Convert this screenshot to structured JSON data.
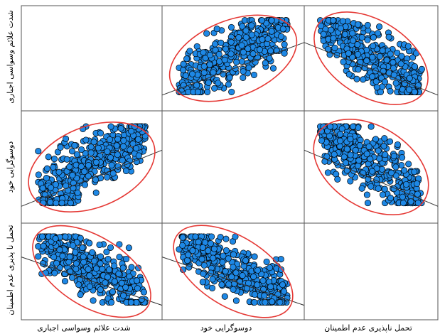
{
  "chart_data": {
    "type": "scatter-matrix",
    "variables": [
      "شدت علائم وسواسی اجباری",
      "دوسوگرایی خود",
      "تحمل نا پذیری عدم اطمینان"
    ],
    "column_labels": [
      "شدت علائم وسواسی اجباری",
      "دوسوگرایی خود",
      "تحمل ناپذیری عدم اطمینان"
    ],
    "row_labels": [
      "شدت علائم وسواسی اجباری",
      "دوسوگرایی خود",
      "تحمل نا پذیری عدم اطمینان"
    ],
    "panels": [
      {
        "row": 0,
        "col": 1,
        "correlation": "positive",
        "density": 0.7,
        "ellipse": true
      },
      {
        "row": 0,
        "col": 2,
        "correlation": "negative",
        "density": 0.6,
        "ellipse": true
      },
      {
        "row": 1,
        "col": 0,
        "correlation": "positive",
        "density": 0.7,
        "ellipse": true
      },
      {
        "row": 1,
        "col": 2,
        "correlation": "negative",
        "density": 0.6,
        "ellipse": true
      },
      {
        "row": 2,
        "col": 0,
        "correlation": "negative",
        "density": 0.7,
        "ellipse": true
      },
      {
        "row": 2,
        "col": 1,
        "correlation": "negative",
        "density": 0.7,
        "ellipse": true
      }
    ],
    "grid": true,
    "marker_color": "#1e88e5",
    "marker_edge": "#000000",
    "fit_line_color": "#333333",
    "ellipse_color": "#e53935"
  }
}
